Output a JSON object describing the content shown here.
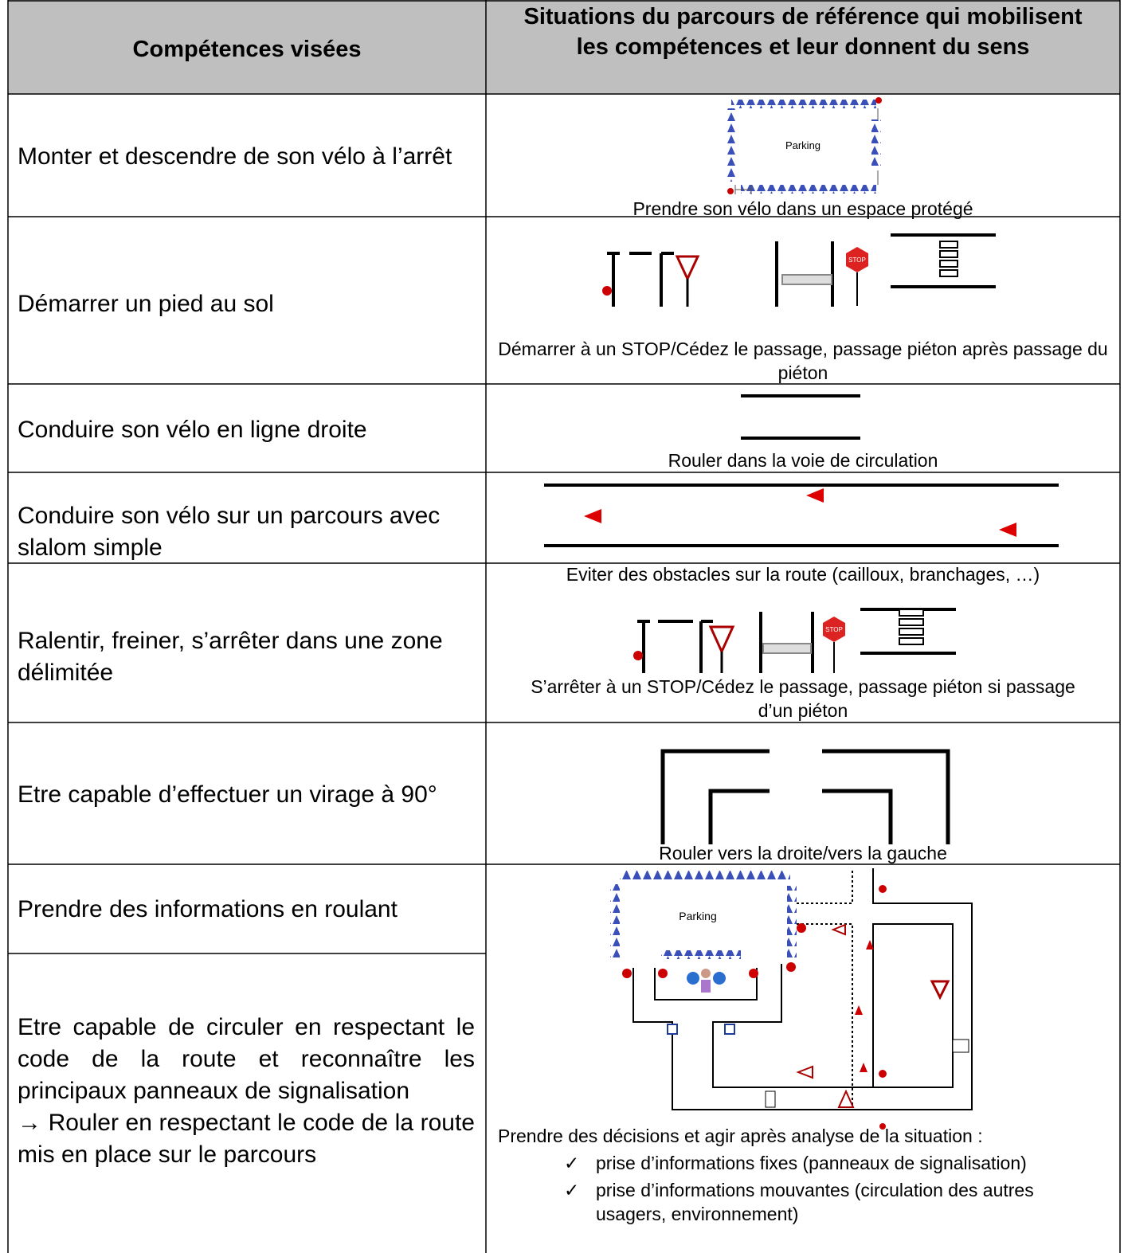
{
  "header": {
    "competences": "Compétences visées",
    "situations": "Situations du parcours de référence qui mobilisent les compétences et leur donnent du sens"
  },
  "rows": [
    {
      "competence": "Monter et descendre de son vélo à l’arrêt",
      "diagram_label": "Parking",
      "situation": "Prendre son vélo dans un espace protégé"
    },
    {
      "competence": "Démarrer un pied au sol",
      "diagram_label": "STOP",
      "situation": "Démarrer à un STOP/Cédez le passage, passage piéton après passage du piéton"
    },
    {
      "competence": "Conduire son vélo en ligne droite",
      "situation": "Rouler dans la voie de circulation"
    },
    {
      "competence": "Conduire son vélo sur un parcours avec slalom simple",
      "situation": "Eviter des obstacles sur la route (cailloux, branchages, …)"
    },
    {
      "competence": "Ralentir, freiner, s’arrêter dans une zone délimitée",
      "diagram_label": "STOP",
      "situation": "S’arrêter à un STOP/Cédez le passage, passage piéton si passage d’un piéton"
    },
    {
      "competence": "Etre capable d’effectuer un virage à 90°",
      "situation": "Rouler vers la droite/vers la gauche"
    },
    {
      "competences": [
        "Prendre des informations en roulant",
        "Etre capable de circuler en respectant le code de la route et reconnaître les principaux panneaux de signalisation",
        "→ Rouler en respectant le code de la route mis en place sur le parcours"
      ],
      "diagram_label": "Parking",
      "situation": "Prendre des décisions et agir après analyse de la situation :",
      "items": [
        "prise d’informations fixes (panneaux de signalisation)",
        "prise d’informations mouvantes (circulation des autres usagers, environnement)"
      ]
    }
  ]
}
